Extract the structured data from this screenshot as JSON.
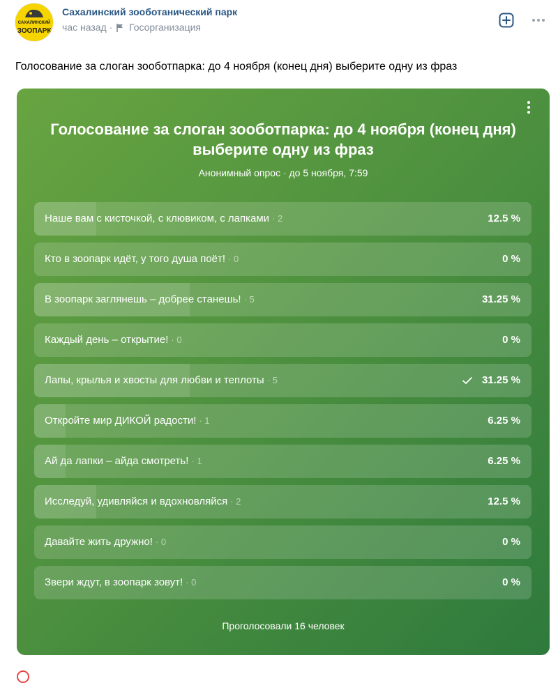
{
  "post": {
    "author": "Сахалинский зооботанический парк",
    "time": "час назад",
    "separator": "·",
    "org_type": "Госорганизация",
    "text": "Голосование за слоган зооботпарка: до 4 ноября (конец дня) выберите одну из фраз",
    "avatar_text_top": "САХАЛИНСКИЙ",
    "avatar_text_bottom": "ЗООПАРК"
  },
  "poll": {
    "title": "Голосование за слоган зооботпарка: до 4 ноября (конец дня) выберите одну из фраз",
    "subtitle": "Анонимный опрос · до 5 ноября, 7:59",
    "options": [
      {
        "label": "Наше вам с кисточкой, с клювиком, с лапками",
        "count": "· 2",
        "percent": "12.5 %",
        "share": 0.125,
        "voted": false
      },
      {
        "label": "Кто в зоопарк идёт, у того душа поёт!",
        "count": "· 0",
        "percent": "0 %",
        "share": 0,
        "voted": false
      },
      {
        "label": "В зоопарк заглянешь – добрее станешь!",
        "count": "· 5",
        "percent": "31.25 %",
        "share": 0.3125,
        "voted": false
      },
      {
        "label": "Каждый день – открытие!",
        "count": "· 0",
        "percent": "0 %",
        "share": 0,
        "voted": false
      },
      {
        "label": "Лапы, крылья и хвосты для любви и теплоты",
        "count": "· 5",
        "percent": "31.25 %",
        "share": 0.3125,
        "voted": true
      },
      {
        "label": "Откройте мир ДИКОЙ радости!",
        "count": "· 1",
        "percent": "6.25 %",
        "share": 0.0625,
        "voted": false
      },
      {
        "label": "Ай да лапки – айда смотреть!",
        "count": "· 1",
        "percent": "6.25 %",
        "share": 0.0625,
        "voted": false
      },
      {
        "label": "Исследуй, удивляйся и вдохновляйся",
        "count": "· 2",
        "percent": "12.5 %",
        "share": 0.125,
        "voted": false
      },
      {
        "label": "Давайте жить дружно!",
        "count": "· 0",
        "percent": "0 %",
        "share": 0,
        "voted": false
      },
      {
        "label": "Звери ждут, в зоопарк зовут!",
        "count": "· 0",
        "percent": "0 %",
        "share": 0,
        "voted": false
      }
    ],
    "voters": "Проголосовали 16 человек"
  },
  "icons": {
    "add": "plus-square-icon",
    "more": "more-horizontal-icon",
    "flag": "flag-icon",
    "poll_menu": "more-vertical-icon",
    "check": "check-icon"
  },
  "colors": {
    "author_link": "#2a5885",
    "meta": "#818c99",
    "poll_gradient_start": "#68a441",
    "poll_gradient_end": "#2e7a3d",
    "avatar_bg": "#f6d400"
  }
}
